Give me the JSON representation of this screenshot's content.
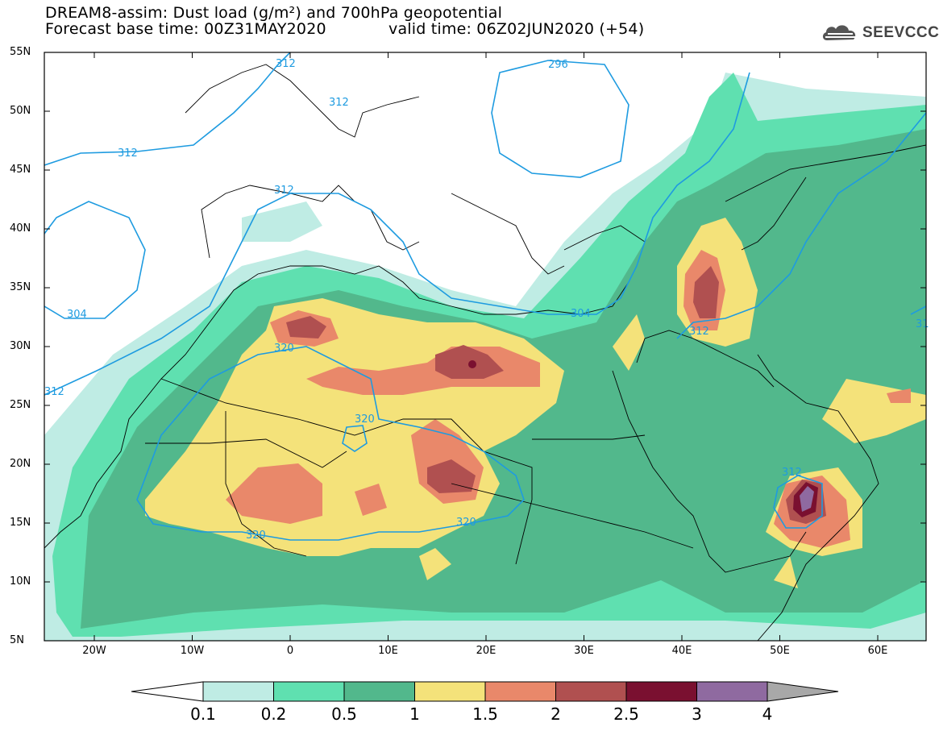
{
  "header": {
    "title_line1": "DREAM8-assim: Dust load (g/m²) and 700hPa geopotential",
    "base_time": "Forecast base time: 00Z31MAY2020",
    "valid_time": "valid time: 06Z02JUN2020 (+54)",
    "logo_text": "SEEVCCC",
    "logo_icon": "cloud-icon"
  },
  "axes": {
    "lat_ticks": [
      "55N",
      "50N",
      "45N",
      "40N",
      "35N",
      "30N",
      "25N",
      "20N",
      "15N",
      "10N",
      "5N"
    ],
    "lon_ticks": [
      "20W",
      "10W",
      "0",
      "10E",
      "20E",
      "30E",
      "40E",
      "50E",
      "60E"
    ]
  },
  "contours": {
    "labels": [
      "312",
      "312",
      "312",
      "312",
      "296",
      "304",
      "304",
      "312",
      "320",
      "320",
      "320",
      "320",
      "312",
      "312",
      "31"
    ]
  },
  "colorbar": {
    "levels": [
      "0.1",
      "0.2",
      "0.5",
      "1",
      "1.5",
      "2",
      "2.5",
      "3",
      "4"
    ],
    "colors": [
      "#bfece4",
      "#5fe0b0",
      "#52b88c",
      "#f4e27a",
      "#e9886a",
      "#b05050",
      "#7a1030",
      "#8f6aa0",
      "#a8a8a8"
    ]
  },
  "map_colors": {
    "land_border": "#000000",
    "contour_line": "#1e9be0"
  }
}
